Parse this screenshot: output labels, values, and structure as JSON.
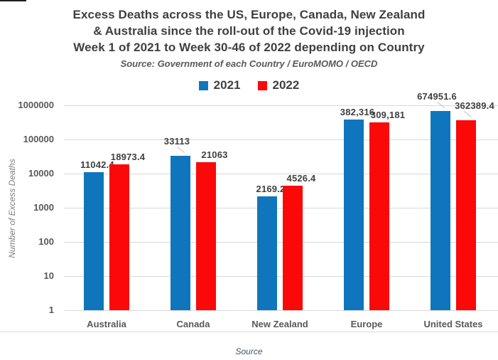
{
  "header": {
    "title_lines": [
      "Excess Deaths across the US, Europe, Canada, New Zealand",
      "& Australia since the roll-out of the Covid-19 injection",
      "Week 1 of 2021 to Week 30-46 of 2022 depending on Country"
    ],
    "source_note": "Source: Government of each Country / EuroMOMO / OECD"
  },
  "legend": [
    {
      "label": "2021",
      "color": "#0F76BD"
    },
    {
      "label": "2022",
      "color": "#FB0909"
    }
  ],
  "footer": {
    "source_label": "Source"
  },
  "colors": {
    "series_2021": "#0F76BD",
    "series_2022": "#FB0909",
    "gridline": "#D9D9D9",
    "title_text": "#3F3F3F",
    "axis_text": "#595959",
    "footer_text": "#44546A"
  },
  "chart_data": {
    "type": "bar",
    "scale": "log",
    "title": "Excess Deaths across the US, Europe, Canada, New Zealand & Australia since the roll-out of the Covid-19 injection Week 1 of 2021 to Week 30-46 of 2022 depending on Country",
    "subtitle": "Source: Government of each Country / EuroMOMO / OECD",
    "categories": [
      "Australia",
      "Canada",
      "New Zealand",
      "Europe",
      "United States"
    ],
    "series": [
      {
        "name": "2021",
        "color": "#0F76BD",
        "values": [
          11042.4,
          33113,
          2169.2,
          382316,
          674951.6
        ],
        "labels": [
          "11042.4",
          "33113",
          "2169.2",
          "382,316",
          "674951.6"
        ]
      },
      {
        "name": "2022",
        "color": "#FB0909",
        "values": [
          18973.4,
          21063,
          4526.4,
          309181,
          362389.4
        ],
        "labels": [
          "18973.4",
          "21063",
          "4526.4",
          "309,181",
          "362389.4"
        ]
      }
    ],
    "xlabel": "",
    "ylabel": "Number of Excess Deaths",
    "ylim": [
      1,
      1000000
    ],
    "yticks": [
      "1000000",
      "100000",
      "10000",
      "1000",
      "100",
      "10",
      "1"
    ],
    "grid": true,
    "legend_position": "top",
    "data_labels": true,
    "raised_label_keys": [
      "Canada|2021",
      "United States|2021",
      "United States|2022"
    ]
  }
}
